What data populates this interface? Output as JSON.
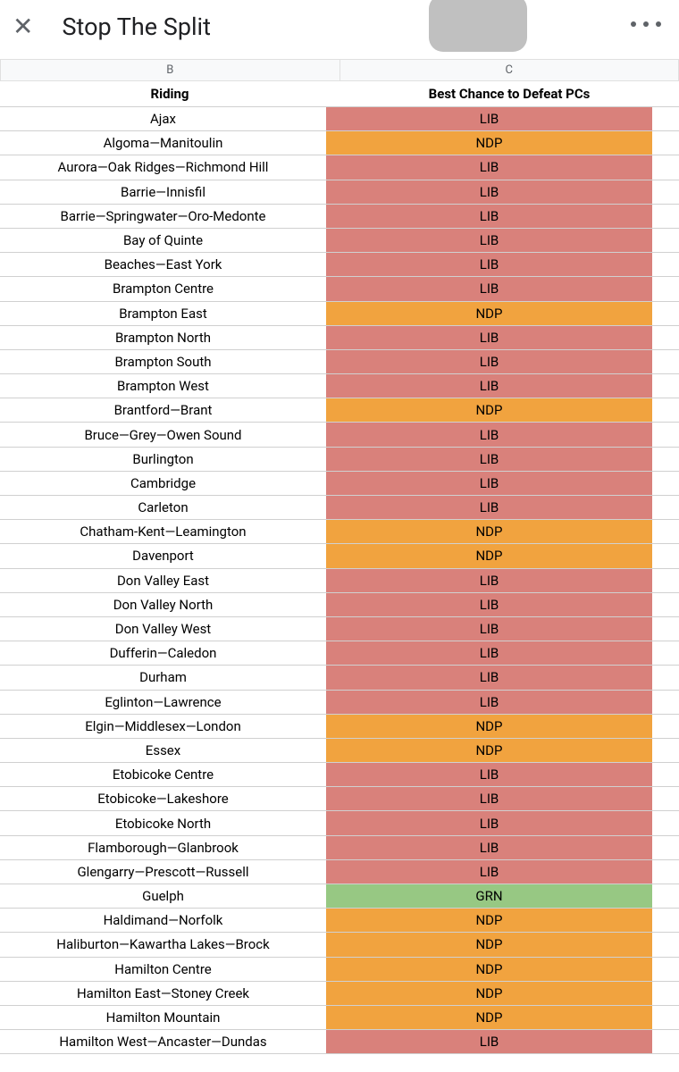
{
  "header": {
    "title": "Stop The Split",
    "close_label": "✕",
    "more_label": "more"
  },
  "columns": {
    "letters": [
      "B",
      "C"
    ],
    "headers": [
      "Riding",
      "Best Chance to Defeat PCs"
    ]
  },
  "party_colors": {
    "LIB": "#d9817b",
    "NDP": "#f1a33f",
    "GRN": "#97c883"
  },
  "rows": [
    {
      "riding": "Ajax",
      "party": "LIB"
    },
    {
      "riding": "Algoma—Manitoulin",
      "party": "NDP"
    },
    {
      "riding": "Aurora—Oak Ridges—Richmond Hill",
      "party": "LIB"
    },
    {
      "riding": "Barrie—Innisfil",
      "party": "LIB"
    },
    {
      "riding": "Barrie—Springwater—Oro-Medonte",
      "party": "LIB"
    },
    {
      "riding": "Bay of Quinte",
      "party": "LIB"
    },
    {
      "riding": "Beaches—East York",
      "party": "LIB"
    },
    {
      "riding": "Brampton Centre",
      "party": "LIB"
    },
    {
      "riding": "Brampton East",
      "party": "NDP"
    },
    {
      "riding": "Brampton North",
      "party": "LIB"
    },
    {
      "riding": "Brampton South",
      "party": "LIB"
    },
    {
      "riding": "Brampton West",
      "party": "LIB"
    },
    {
      "riding": "Brantford—Brant",
      "party": "NDP"
    },
    {
      "riding": "Bruce—Grey—Owen Sound",
      "party": "LIB"
    },
    {
      "riding": "Burlington",
      "party": "LIB"
    },
    {
      "riding": "Cambridge",
      "party": "LIB"
    },
    {
      "riding": "Carleton",
      "party": "LIB"
    },
    {
      "riding": "Chatham-Kent—Leamington",
      "party": "NDP"
    },
    {
      "riding": "Davenport",
      "party": "NDP"
    },
    {
      "riding": "Don Valley East",
      "party": "LIB"
    },
    {
      "riding": "Don Valley North",
      "party": "LIB"
    },
    {
      "riding": "Don Valley West",
      "party": "LIB"
    },
    {
      "riding": "Dufferin—Caledon",
      "party": "LIB"
    },
    {
      "riding": "Durham",
      "party": "LIB"
    },
    {
      "riding": "Eglinton—Lawrence",
      "party": "LIB"
    },
    {
      "riding": "Elgin—Middlesex—London",
      "party": "NDP"
    },
    {
      "riding": "Essex",
      "party": "NDP"
    },
    {
      "riding": "Etobicoke Centre",
      "party": "LIB"
    },
    {
      "riding": "Etobicoke—Lakeshore",
      "party": "LIB"
    },
    {
      "riding": "Etobicoke North",
      "party": "LIB"
    },
    {
      "riding": "Flamborough—Glanbrook",
      "party": "LIB"
    },
    {
      "riding": "Glengarry—Prescott—Russell",
      "party": "LIB"
    },
    {
      "riding": "Guelph",
      "party": "GRN"
    },
    {
      "riding": "Haldimand—Norfolk",
      "party": "NDP"
    },
    {
      "riding": "Haliburton—Kawartha Lakes—Brock",
      "party": "NDP"
    },
    {
      "riding": "Hamilton Centre",
      "party": "NDP"
    },
    {
      "riding": "Hamilton East—Stoney Creek",
      "party": "NDP"
    },
    {
      "riding": "Hamilton Mountain",
      "party": "NDP"
    },
    {
      "riding": "Hamilton West—Ancaster—Dundas",
      "party": "LIB"
    }
  ]
}
